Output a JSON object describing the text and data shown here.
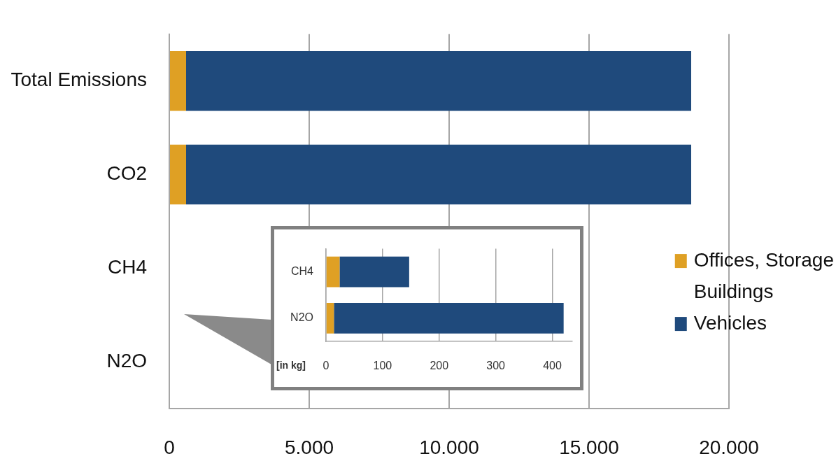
{
  "chart_data": [
    {
      "type": "bar",
      "orientation": "horizontal",
      "stacked": true,
      "categories": [
        "Total Emissions",
        "CO2",
        "CH4",
        "N2O"
      ],
      "series": [
        {
          "name": "Offices, Storage Buildings",
          "color": "#dfa024",
          "values": [
            600,
            600,
            null,
            null
          ]
        },
        {
          "name": "Vehicles",
          "color": "#1f4a7c",
          "values": [
            18050,
            18050,
            null,
            null
          ]
        }
      ],
      "xlim": [
        0,
        20000
      ],
      "xticks": [
        0,
        {
          "value": 5000,
          "label": "5.000"
        },
        {
          "value": 10000,
          "label": "10.000"
        },
        {
          "value": 15000,
          "label": "15.000"
        },
        {
          "value": 20000,
          "label": "20.000"
        }
      ],
      "grid": "x",
      "legend": "right"
    },
    {
      "type": "bar",
      "orientation": "horizontal",
      "stacked": true,
      "categories": [
        "CH4",
        "N2O"
      ],
      "series": [
        {
          "color": "#dfa024",
          "values": [
            24,
            14
          ]
        },
        {
          "color": "#1f4a7c",
          "values": [
            123,
            406
          ]
        }
      ],
      "xlim": [
        0,
        435
      ],
      "xticks": [
        0,
        100,
        200,
        300,
        400
      ],
      "xlabel": "[in kg]",
      "grid": "x"
    }
  ]
}
